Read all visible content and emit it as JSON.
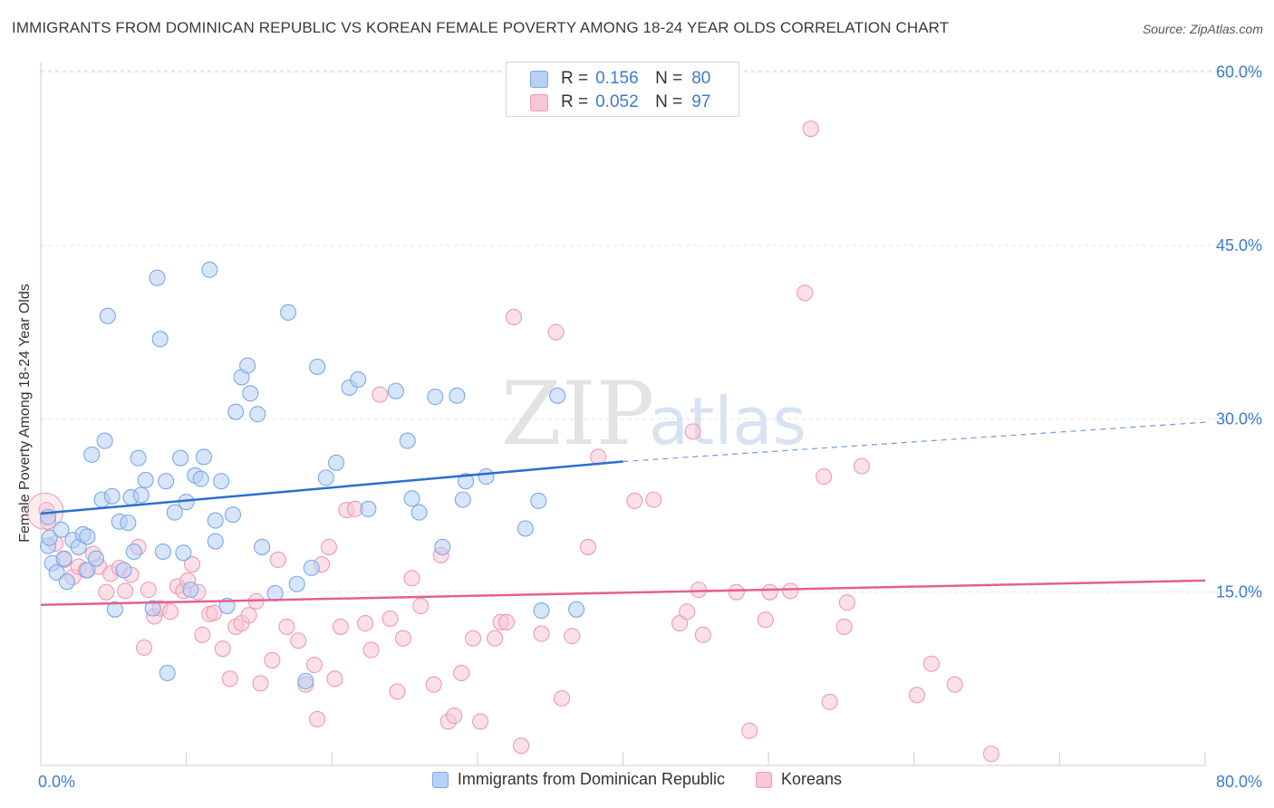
{
  "title": "IMMIGRANTS FROM DOMINICAN REPUBLIC VS KOREAN FEMALE POVERTY AMONG 18-24 YEAR OLDS CORRELATION CHART",
  "source": "Source: ZipAtlas.com",
  "watermark": {
    "zip": "ZIP",
    "atlas": "atlas"
  },
  "legend_top": [
    {
      "r_label": "R =",
      "r_value": "0.156",
      "n_label": "N =",
      "n_value": "80"
    },
    {
      "r_label": "R =",
      "r_value": "0.052",
      "n_label": "N =",
      "n_value": "97"
    }
  ],
  "chart_data": {
    "type": "scatter",
    "title": "IMMIGRANTS FROM DOMINICAN REPUBLIC VS KOREAN FEMALE POVERTY AMONG 18-24 YEAR OLDS CORRELATION CHART",
    "xlabel": "",
    "ylabel": "Female Poverty Among 18-24 Year Olds",
    "xlim": [
      0,
      80
    ],
    "ylim": [
      0,
      62
    ],
    "x_tick_labels": [
      "0.0%",
      "80.0%"
    ],
    "y_ticks": [
      15,
      30,
      45,
      60
    ],
    "y_tick_labels": [
      "15.0%",
      "30.0%",
      "45.0%",
      "60.0%"
    ],
    "grid": true,
    "legend_position": "bottom",
    "series": [
      {
        "name": "Immigrants from Dominican Republic",
        "color": "#7aa9e8",
        "fill": "#b7d0f4",
        "r": 0.156,
        "n": 80,
        "trend": {
          "x": [
            0,
            40
          ],
          "y": [
            21.8,
            26.3
          ],
          "extend_to": 80,
          "extend_y": 29.7
        },
        "points": [
          [
            0.5,
            21.5
          ],
          [
            0.5,
            19
          ],
          [
            0.6,
            19.7
          ],
          [
            0.8,
            17.5
          ],
          [
            1.1,
            16.7
          ],
          [
            1.4,
            20.4
          ],
          [
            1.6,
            17.9
          ],
          [
            1.8,
            15.9
          ],
          [
            2.2,
            19.5
          ],
          [
            2.6,
            18.9
          ],
          [
            2.9,
            20.0
          ],
          [
            3.2,
            19.8
          ],
          [
            3.2,
            16.9
          ],
          [
            3.5,
            26.9
          ],
          [
            3.8,
            17.9
          ],
          [
            4.2,
            23.0
          ],
          [
            4.4,
            28.1
          ],
          [
            4.6,
            38.9
          ],
          [
            4.9,
            23.3
          ],
          [
            5.1,
            13.5
          ],
          [
            5.4,
            21.1
          ],
          [
            5.7,
            16.9
          ],
          [
            6.0,
            21.0
          ],
          [
            6.2,
            23.2
          ],
          [
            6.4,
            18.5
          ],
          [
            6.7,
            26.6
          ],
          [
            6.9,
            23.4
          ],
          [
            7.2,
            24.7
          ],
          [
            7.7,
            13.6
          ],
          [
            8.0,
            42.2
          ],
          [
            8.2,
            36.9
          ],
          [
            8.4,
            18.5
          ],
          [
            8.6,
            24.6
          ],
          [
            8.7,
            8.0
          ],
          [
            9.2,
            21.9
          ],
          [
            9.6,
            26.6
          ],
          [
            9.8,
            18.4
          ],
          [
            10.0,
            22.8
          ],
          [
            10.3,
            15.2
          ],
          [
            10.6,
            25.1
          ],
          [
            11.0,
            24.8
          ],
          [
            11.2,
            26.7
          ],
          [
            11.6,
            42.9
          ],
          [
            12.0,
            19.4
          ],
          [
            12.0,
            21.2
          ],
          [
            12.4,
            24.6
          ],
          [
            12.8,
            13.8
          ],
          [
            13.2,
            21.7
          ],
          [
            13.4,
            30.6
          ],
          [
            13.8,
            33.6
          ],
          [
            14.2,
            34.6
          ],
          [
            14.4,
            32.2
          ],
          [
            14.9,
            30.4
          ],
          [
            15.2,
            18.9
          ],
          [
            16.1,
            14.9
          ],
          [
            17.0,
            39.2
          ],
          [
            17.6,
            15.7
          ],
          [
            18.2,
            7.3
          ],
          [
            18.6,
            17.1
          ],
          [
            19.0,
            34.5
          ],
          [
            19.6,
            24.9
          ],
          [
            20.3,
            26.2
          ],
          [
            21.2,
            32.7
          ],
          [
            21.8,
            33.4
          ],
          [
            22.5,
            22.2
          ],
          [
            24.4,
            32.4
          ],
          [
            25.2,
            28.1
          ],
          [
            25.5,
            23.1
          ],
          [
            26.0,
            21.9
          ],
          [
            27.1,
            31.9
          ],
          [
            27.6,
            18.9
          ],
          [
            28.6,
            32.0
          ],
          [
            29.0,
            23.0
          ],
          [
            29.2,
            24.6
          ],
          [
            30.6,
            25.0
          ],
          [
            33.3,
            20.5
          ],
          [
            34.2,
            22.9
          ],
          [
            34.4,
            13.4
          ],
          [
            35.5,
            32.0
          ],
          [
            36.8,
            13.5
          ]
        ]
      },
      {
        "name": "Koreans",
        "color": "#ee9ab4",
        "fill": "#f8c6d5",
        "r": 0.052,
        "n": 97,
        "trend": {
          "x": [
            0,
            80
          ],
          "y": [
            13.9,
            16.0
          ]
        },
        "points": [
          [
            0.4,
            22.1
          ],
          [
            0.5,
            21.1
          ],
          [
            1.0,
            19.2
          ],
          [
            1.6,
            17.8
          ],
          [
            2.2,
            16.3
          ],
          [
            2.6,
            17.2
          ],
          [
            3.1,
            16.9
          ],
          [
            3.6,
            18.3
          ],
          [
            4.0,
            17.2
          ],
          [
            4.5,
            15.0
          ],
          [
            4.8,
            16.6
          ],
          [
            5.4,
            17.1
          ],
          [
            5.8,
            15.1
          ],
          [
            6.2,
            16.5
          ],
          [
            6.7,
            18.9
          ],
          [
            7.1,
            10.2
          ],
          [
            7.4,
            15.2
          ],
          [
            7.8,
            12.9
          ],
          [
            8.2,
            13.6
          ],
          [
            8.9,
            13.3
          ],
          [
            9.4,
            15.5
          ],
          [
            9.8,
            15.1
          ],
          [
            10.1,
            16.0
          ],
          [
            10.4,
            17.4
          ],
          [
            10.8,
            15.0
          ],
          [
            11.1,
            11.3
          ],
          [
            11.6,
            13.1
          ],
          [
            11.9,
            13.2
          ],
          [
            12.5,
            10.1
          ],
          [
            13.0,
            7.5
          ],
          [
            13.4,
            12.0
          ],
          [
            13.8,
            12.3
          ],
          [
            14.3,
            13.0
          ],
          [
            14.8,
            14.2
          ],
          [
            15.1,
            7.1
          ],
          [
            15.9,
            9.1
          ],
          [
            16.3,
            17.8
          ],
          [
            16.9,
            12.0
          ],
          [
            17.7,
            10.8
          ],
          [
            18.2,
            7.0
          ],
          [
            18.8,
            8.7
          ],
          [
            19.0,
            4.0
          ],
          [
            19.3,
            17.4
          ],
          [
            19.8,
            18.9
          ],
          [
            20.2,
            7.5
          ],
          [
            20.6,
            12.0
          ],
          [
            21.0,
            22.1
          ],
          [
            21.6,
            22.2
          ],
          [
            22.3,
            12.3
          ],
          [
            22.7,
            10.0
          ],
          [
            23.3,
            32.1
          ],
          [
            24.0,
            12.7
          ],
          [
            24.5,
            6.4
          ],
          [
            24.9,
            11.0
          ],
          [
            25.5,
            16.2
          ],
          [
            26.1,
            13.8
          ],
          [
            27.0,
            7.0
          ],
          [
            27.5,
            18.2
          ],
          [
            28.0,
            3.8
          ],
          [
            28.4,
            4.3
          ],
          [
            28.9,
            8.0
          ],
          [
            29.7,
            11.0
          ],
          [
            30.2,
            3.8
          ],
          [
            31.2,
            11.0
          ],
          [
            31.6,
            12.4
          ],
          [
            32.0,
            12.4
          ],
          [
            32.5,
            38.8
          ],
          [
            33.0,
            1.7
          ],
          [
            34.4,
            11.4
          ],
          [
            35.4,
            37.5
          ],
          [
            35.8,
            5.8
          ],
          [
            36.5,
            11.2
          ],
          [
            37.6,
            18.9
          ],
          [
            38.3,
            26.7
          ],
          [
            40.8,
            22.9
          ],
          [
            42.1,
            23.0
          ],
          [
            43.9,
            12.3
          ],
          [
            44.4,
            13.3
          ],
          [
            44.8,
            28.9
          ],
          [
            45.2,
            15.2
          ],
          [
            45.5,
            11.3
          ],
          [
            47.8,
            15.0
          ],
          [
            48.7,
            3.0
          ],
          [
            49.8,
            12.6
          ],
          [
            50.1,
            15.0
          ],
          [
            51.5,
            15.1
          ],
          [
            52.5,
            40.9
          ],
          [
            52.9,
            55.1
          ],
          [
            53.8,
            25.0
          ],
          [
            54.2,
            5.5
          ],
          [
            55.2,
            12.0
          ],
          [
            55.4,
            14.1
          ],
          [
            56.4,
            25.9
          ],
          [
            60.2,
            6.1
          ],
          [
            61.2,
            8.8
          ],
          [
            62.8,
            7.0
          ],
          [
            65.3,
            1.0
          ]
        ]
      }
    ]
  }
}
